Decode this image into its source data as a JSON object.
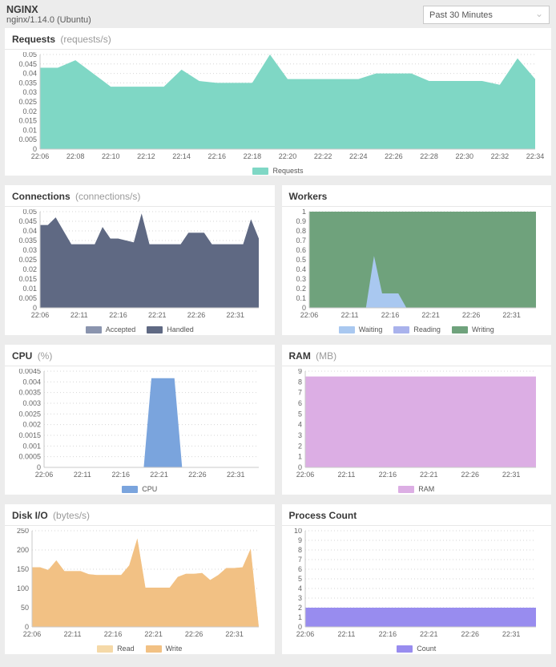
{
  "header": {
    "title": "NGINX",
    "subtitle": "nginx/1.14.0 (Ubuntu)",
    "time_range": "Past 30 Minutes"
  },
  "timeline": [
    "22:06",
    "22:07",
    "22:08",
    "22:09",
    "22:10",
    "22:11",
    "22:12",
    "22:13",
    "22:14",
    "22:15",
    "22:16",
    "22:17",
    "22:18",
    "22:19",
    "22:20",
    "22:21",
    "22:22",
    "22:23",
    "22:24",
    "22:25",
    "22:26",
    "22:27",
    "22:28",
    "22:29",
    "22:30",
    "22:31",
    "22:32",
    "22:33",
    "22:34"
  ],
  "chart_data": [
    {
      "id": "requests",
      "type": "area",
      "title": "Requests",
      "unit": "(requests/s)",
      "ylim": [
        0,
        0.05
      ],
      "yticks": [
        "0.05",
        "0.045",
        "0.04",
        "0.035",
        "0.03",
        "0.025",
        "0.02",
        "0.015",
        "0.01",
        "0.005",
        "0"
      ],
      "xticks": [
        "22:06",
        "22:08",
        "22:10",
        "22:12",
        "22:14",
        "22:16",
        "22:18",
        "22:20",
        "22:22",
        "22:24",
        "22:26",
        "22:28",
        "22:30",
        "22:32",
        "22:34"
      ],
      "grid": "dotted-horizontal",
      "legend_position": "bottom",
      "series": [
        {
          "name": "Requests",
          "color": "#7fd7c5",
          "values": [
            0.043,
            0.043,
            0.047,
            0.04,
            0.033,
            0.033,
            0.033,
            0.033,
            0.042,
            0.036,
            0.035,
            0.035,
            0.035,
            0.05,
            0.037,
            0.037,
            0.037,
            0.037,
            0.037,
            0.04,
            0.04,
            0.04,
            0.036,
            0.036,
            0.036,
            0.036,
            0.034,
            0.048,
            0.037
          ]
        }
      ],
      "legend": [
        {
          "label": "Requests",
          "color": "#7fd7c5"
        }
      ]
    },
    {
      "id": "connections",
      "type": "area",
      "title": "Connections",
      "unit": "(connections/s)",
      "ylim": [
        0,
        0.05
      ],
      "yticks": [
        "0.05",
        "0.045",
        "0.04",
        "0.035",
        "0.03",
        "0.025",
        "0.02",
        "0.015",
        "0.01",
        "0.005",
        "0"
      ],
      "xticks": [
        "22:06",
        "22:11",
        "22:16",
        "22:21",
        "22:26",
        "22:31"
      ],
      "grid": "dotted-horizontal",
      "legend_position": "bottom",
      "series": [
        {
          "name": "Accepted",
          "color": "#8a94ae",
          "values": [
            0.043,
            0.043,
            0.047,
            0.04,
            0.033,
            0.033,
            0.033,
            0.033,
            0.042,
            0.036,
            0.036,
            0.035,
            0.034,
            0.049,
            0.033,
            0.033,
            0.033,
            0.033,
            0.033,
            0.039,
            0.039,
            0.039,
            0.033,
            0.033,
            0.033,
            0.033,
            0.033,
            0.046,
            0.036
          ]
        },
        {
          "name": "Handled",
          "color": "#5f6983",
          "values": [
            0.043,
            0.043,
            0.047,
            0.04,
            0.033,
            0.033,
            0.033,
            0.033,
            0.042,
            0.036,
            0.036,
            0.035,
            0.034,
            0.049,
            0.033,
            0.033,
            0.033,
            0.033,
            0.033,
            0.039,
            0.039,
            0.039,
            0.033,
            0.033,
            0.033,
            0.033,
            0.033,
            0.046,
            0.036
          ]
        }
      ],
      "legend": [
        {
          "label": "Accepted",
          "color": "#8a94ae"
        },
        {
          "label": "Handled",
          "color": "#5f6983"
        }
      ]
    },
    {
      "id": "workers",
      "type": "area",
      "title": "Workers",
      "unit": "",
      "ylim": [
        0,
        1
      ],
      "yticks": [
        "1",
        "0.9",
        "0.8",
        "0.7",
        "0.6",
        "0.5",
        "0.4",
        "0.3",
        "0.2",
        "0.1",
        "0"
      ],
      "xticks": [
        "22:06",
        "22:11",
        "22:16",
        "22:21",
        "22:26",
        "22:31"
      ],
      "grid": "dotted-horizontal",
      "legend_position": "bottom",
      "series": [
        {
          "name": "Writing",
          "color": "#6fa27c",
          "values": [
            1,
            1,
            1,
            1,
            1,
            1,
            1,
            1,
            1,
            1,
            1,
            1,
            1,
            1,
            1,
            1,
            1,
            1,
            1,
            1,
            1,
            1,
            1,
            1,
            1,
            1,
            1,
            1,
            1
          ]
        },
        {
          "name": "Reading",
          "color": "#a9b2ec",
          "values": [
            0,
            0,
            0,
            0,
            0,
            0,
            0,
            0,
            0,
            0,
            0,
            0,
            0,
            0,
            0,
            0,
            0,
            0,
            0,
            0,
            0,
            0,
            0,
            0,
            0,
            0,
            0,
            0,
            0
          ]
        },
        {
          "name": "Waiting",
          "color": "#a9c8f0",
          "values": [
            0,
            0,
            0,
            0,
            0,
            0,
            0,
            0,
            0.54,
            0.15,
            0.15,
            0.15,
            0,
            0,
            0,
            0,
            0,
            0,
            0,
            0,
            0,
            0,
            0,
            0,
            0,
            0,
            0,
            0,
            0
          ]
        }
      ],
      "legend": [
        {
          "label": "Waiting",
          "color": "#a9c8f0"
        },
        {
          "label": "Reading",
          "color": "#a9b2ec"
        },
        {
          "label": "Writing",
          "color": "#6fa27c"
        }
      ]
    },
    {
      "id": "cpu",
      "type": "area",
      "title": "CPU",
      "unit": "(%)",
      "ylim": [
        0,
        0.0045
      ],
      "yticks": [
        "0.0045",
        "0.004",
        "0.0035",
        "0.003",
        "0.0025",
        "0.002",
        "0.0015",
        "0.001",
        "0.0005",
        "0"
      ],
      "xticks": [
        "22:06",
        "22:11",
        "22:16",
        "22:21",
        "22:26",
        "22:31"
      ],
      "grid": "dotted-horizontal",
      "legend_position": "bottom",
      "series": [
        {
          "name": "CPU",
          "color": "#7aa4dd",
          "values": [
            0,
            0,
            0,
            0,
            0,
            0,
            0,
            0,
            0,
            0,
            0,
            0,
            0,
            0,
            0.00417,
            0.00417,
            0.00417,
            0.00417,
            0,
            0,
            0,
            0,
            0,
            0,
            0,
            0,
            0,
            0,
            0
          ]
        }
      ],
      "legend": [
        {
          "label": "CPU",
          "color": "#7aa4dd"
        }
      ]
    },
    {
      "id": "ram",
      "type": "area",
      "title": "RAM",
      "unit": "(MB)",
      "ylim": [
        0,
        9
      ],
      "yticks": [
        "9",
        "8",
        "7",
        "6",
        "5",
        "4",
        "3",
        "2",
        "1",
        "0"
      ],
      "xticks": [
        "22:06",
        "22:11",
        "22:16",
        "22:21",
        "22:26",
        "22:31"
      ],
      "grid": "dotted-horizontal",
      "legend_position": "bottom",
      "series": [
        {
          "name": "RAM",
          "color": "#dcaee4",
          "values": [
            8.5,
            8.5,
            8.5,
            8.5,
            8.5,
            8.5,
            8.5,
            8.5,
            8.5,
            8.5,
            8.5,
            8.5,
            8.5,
            8.5,
            8.5,
            8.5,
            8.5,
            8.5,
            8.5,
            8.5,
            8.5,
            8.5,
            8.5,
            8.5,
            8.5,
            8.5,
            8.5,
            8.5,
            8.5
          ]
        }
      ],
      "legend": [
        {
          "label": "RAM",
          "color": "#dcaee4"
        }
      ]
    },
    {
      "id": "disk-io",
      "type": "area",
      "title": "Disk I/O",
      "unit": "(bytes/s)",
      "ylim": [
        0,
        250
      ],
      "yticks": [
        "250",
        "200",
        "150",
        "100",
        "50",
        "0"
      ],
      "xticks": [
        "22:06",
        "22:11",
        "22:16",
        "22:21",
        "22:26",
        "22:31"
      ],
      "grid": "dotted-horizontal",
      "legend_position": "bottom",
      "series": [
        {
          "name": "Read",
          "color": "#f5d9a8",
          "values": [
            155,
            155,
            148,
            173,
            145,
            145,
            145,
            137,
            135,
            135,
            135,
            135,
            160,
            230,
            102,
            102,
            102,
            102,
            130,
            138,
            138,
            140,
            122,
            135,
            153,
            153,
            155,
            203,
            0
          ]
        },
        {
          "name": "Write",
          "color": "#f2c184",
          "values": [
            155,
            155,
            148,
            173,
            145,
            145,
            145,
            137,
            135,
            135,
            135,
            135,
            160,
            230,
            102,
            102,
            102,
            102,
            130,
            138,
            138,
            140,
            122,
            135,
            153,
            153,
            155,
            203,
            0
          ]
        }
      ],
      "legend": [
        {
          "label": "Read",
          "color": "#f5d9a8"
        },
        {
          "label": "Write",
          "color": "#f2c184"
        }
      ]
    },
    {
      "id": "process-count",
      "type": "area",
      "title": "Process Count",
      "unit": "",
      "ylim": [
        0,
        10
      ],
      "yticks": [
        "10",
        "9",
        "8",
        "7",
        "6",
        "5",
        "4",
        "3",
        "2",
        "1",
        "0"
      ],
      "xticks": [
        "22:06",
        "22:11",
        "22:16",
        "22:21",
        "22:26",
        "22:31"
      ],
      "grid": "dotted-horizontal",
      "legend_position": "bottom",
      "series": [
        {
          "name": "Count",
          "color": "#988cef",
          "values": [
            2,
            2,
            2,
            2,
            2,
            2,
            2,
            2,
            2,
            2,
            2,
            2,
            2,
            2,
            2,
            2,
            2,
            2,
            2,
            2,
            2,
            2,
            2,
            2,
            2,
            2,
            2,
            2,
            2
          ]
        }
      ],
      "legend": [
        {
          "label": "Count",
          "color": "#988cef"
        }
      ]
    }
  ]
}
